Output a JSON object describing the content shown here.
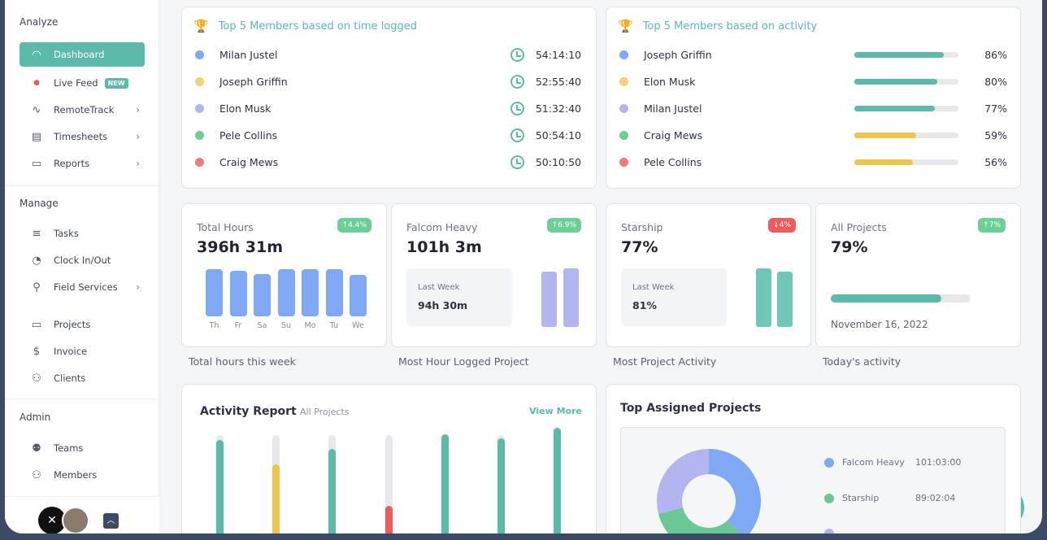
{
  "sidebar": {
    "sections": {
      "analyze": "Analyze",
      "manage": "Manage",
      "admin": "Admin"
    },
    "items": [
      {
        "label": "Dashboard",
        "icon": "gauge-icon",
        "active": true
      },
      {
        "label": "Live Feed",
        "icon": "live-dot-icon",
        "badge": "NEW"
      },
      {
        "label": "RemoteTrack",
        "icon": "pulse-icon",
        "chevron": true
      },
      {
        "label": "Timesheets",
        "icon": "timesheet-icon",
        "chevron": true
      },
      {
        "label": "Reports",
        "icon": "report-icon",
        "chevron": true
      },
      {
        "label": "Tasks",
        "icon": "list-icon"
      },
      {
        "label": "Clock In/Out",
        "icon": "clock-icon"
      },
      {
        "label": "Field Services",
        "icon": "location-user-icon",
        "chevron": true
      },
      {
        "label": "Projects",
        "icon": "folder-icon"
      },
      {
        "label": "Invoice",
        "icon": "invoice-icon"
      },
      {
        "label": "Clients",
        "icon": "clients-icon"
      },
      {
        "label": "Teams",
        "icon": "teams-icon"
      },
      {
        "label": "Members",
        "icon": "members-icon"
      }
    ]
  },
  "time_card": {
    "title": "Top 5 Members based on time logged",
    "rows": [
      {
        "name": "Milan Justel",
        "time": "54:14:10",
        "color": "#7fa8f5"
      },
      {
        "name": "Joseph Griffin",
        "time": "52:55:40",
        "color": "#f2d27a"
      },
      {
        "name": "Elon Musk",
        "time": "51:32:40",
        "color": "#b3b5f0"
      },
      {
        "name": "Pele Collins",
        "time": "50:54:10",
        "color": "#6bcf97"
      },
      {
        "name": "Craig Mews",
        "time": "50:10:50",
        "color": "#ee7c7c"
      }
    ]
  },
  "activity_card": {
    "title": "Top 5 Members based on activity",
    "rows": [
      {
        "name": "Joseph Griffin",
        "pct": "86%",
        "value": 86,
        "color": "#7fa8f5",
        "bar": "#5bbaa9"
      },
      {
        "name": "Elon Musk",
        "pct": "80%",
        "value": 80,
        "color": "#f2d27a",
        "bar": "#5bbaa9"
      },
      {
        "name": "Milan Justel",
        "pct": "77%",
        "value": 77,
        "color": "#b3b5f0",
        "bar": "#5bbaa9"
      },
      {
        "name": "Craig Mews",
        "pct": "59%",
        "value": 59,
        "color": "#6bcf97",
        "bar": "#edc54e"
      },
      {
        "name": "Pele Collins",
        "pct": "56%",
        "value": 56,
        "color": "#ee7c7c",
        "bar": "#edc54e"
      }
    ]
  },
  "stats": [
    {
      "label": "Total Hours",
      "value": "396h 31m",
      "change": "↑4.4%",
      "change_color": "#6bcf97",
      "caption": "Total hours this week",
      "chart_data": {
        "type": "bar",
        "categories": [
          "Th",
          "Fr",
          "Sa",
          "Su",
          "Mo",
          "Tu",
          "We"
        ],
        "values": [
          0.97,
          0.94,
          0.87,
          0.97,
          0.97,
          0.97,
          0.85
        ]
      }
    },
    {
      "label": "Falcom Heavy",
      "value": "101h 3m",
      "change": "↑6.9%",
      "change_color": "#6bcf97",
      "last_week_label": "Last Week",
      "last_week": "94h 30m",
      "caption": "Most Hour Logged Project",
      "bars": [
        0.94,
        1.0
      ]
    },
    {
      "label": "Starship",
      "value": "77%",
      "change": "↓4%",
      "change_color": "#ee5b5b",
      "last_week_label": "Last Week",
      "last_week": "81%",
      "caption": "Most Project Activity",
      "bars": [
        1.0,
        0.95
      ]
    },
    {
      "label": "All Projects",
      "value": "79%",
      "change": "↑7%",
      "change_color": "#6bcf97",
      "progress": 79,
      "date": "November 16, 2022",
      "caption": "Today's activity"
    }
  ],
  "activity_report": {
    "title": "Activity Report",
    "subtitle": "All Projects",
    "link": "View More",
    "chart_data": {
      "type": "bar",
      "values": [
        0.69,
        0.52,
        0.63,
        0.24,
        0.73,
        0.7,
        0.77
      ],
      "colors": [
        "#5bbaa9",
        "#edc54e",
        "#5bbaa9",
        "#ee5b5b",
        "#5bbaa9",
        "#5bbaa9",
        "#5bbaa9"
      ]
    }
  },
  "top_projects": {
    "title": "Top Assigned Projects",
    "chart_data": {
      "type": "pie",
      "slices": [
        {
          "name": "Falcom Heavy",
          "value": "101:03:00",
          "hours": 101.05,
          "color": "#7fa8f5"
        },
        {
          "name": "Starship",
          "value": "89:02:04",
          "hours": 89.03,
          "color": "#6bc795"
        },
        {
          "name": "",
          "value": "",
          "hours": 77.6,
          "color": "#b3b5f0"
        }
      ]
    }
  }
}
